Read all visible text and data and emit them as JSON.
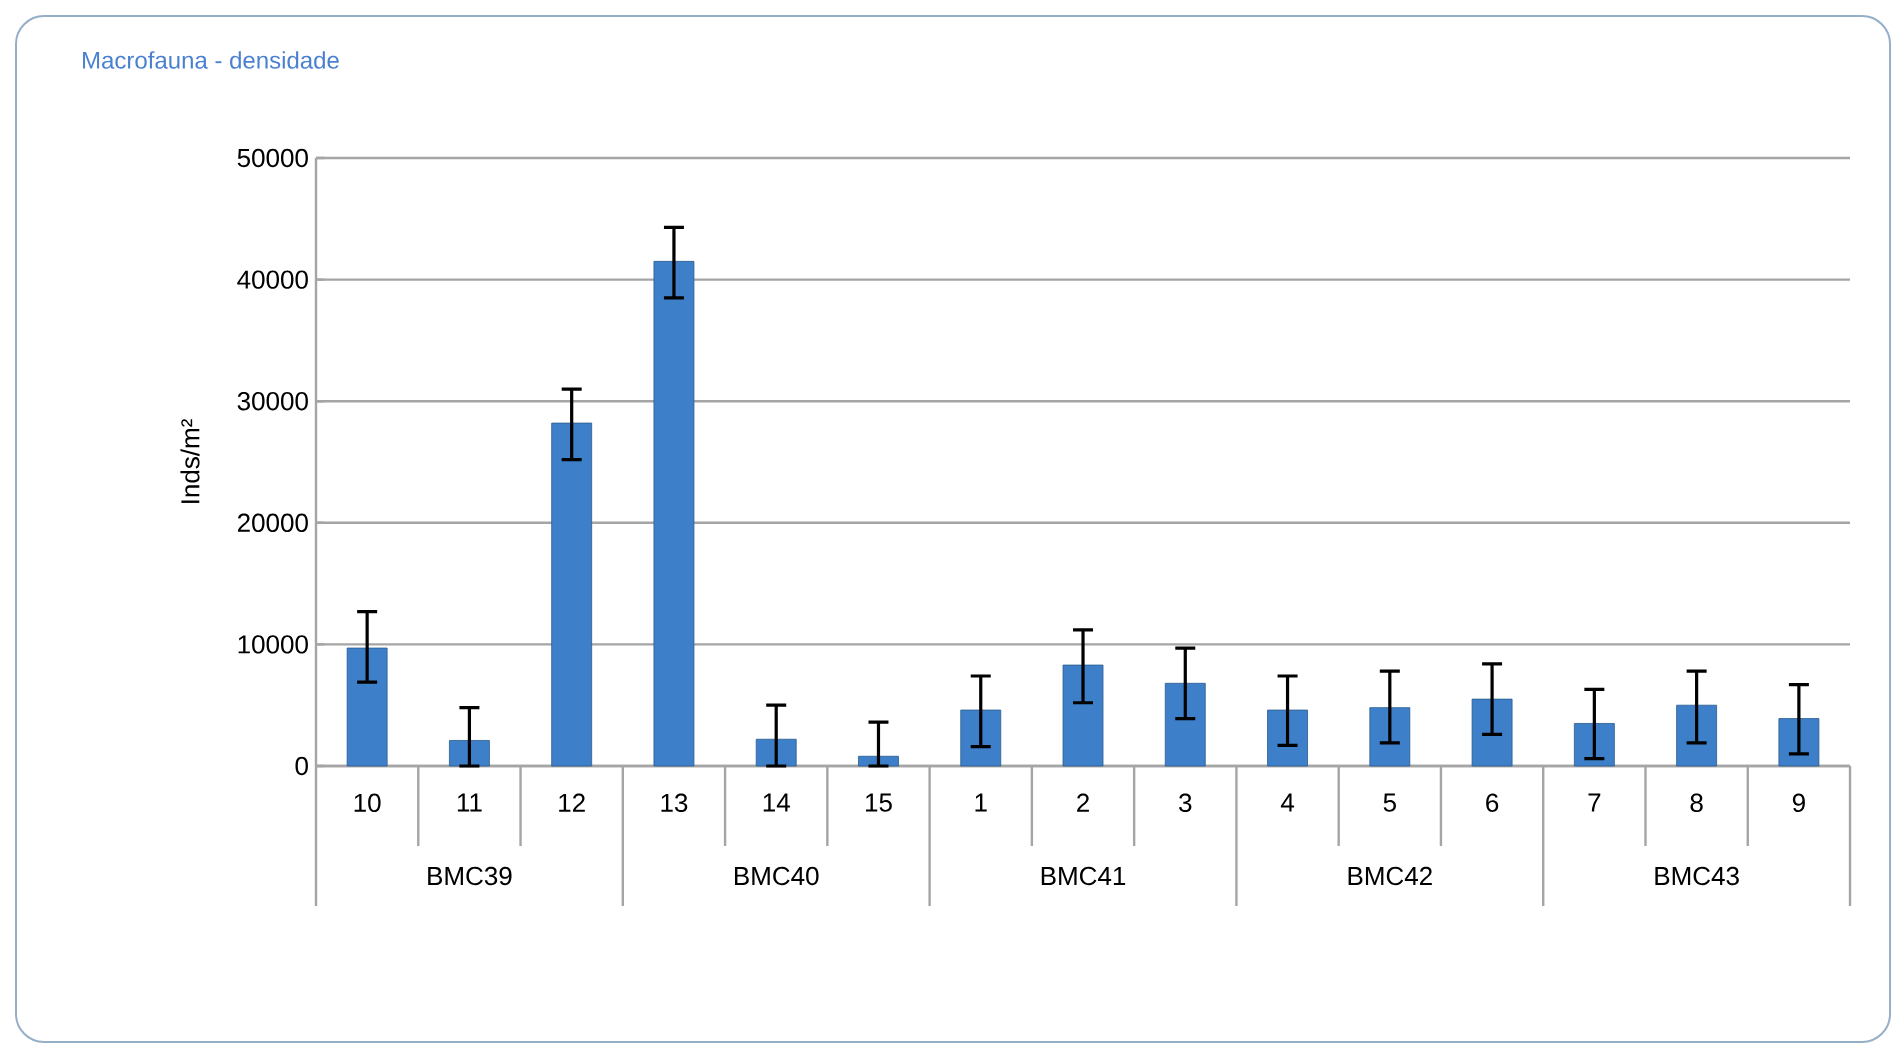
{
  "chart_data": {
    "type": "bar",
    "title": "Macrofauna - densidade",
    "ylabel": "Inds/m²",
    "categories": [
      "10",
      "11",
      "12",
      "13",
      "14",
      "15",
      "1",
      "2",
      "3",
      "4",
      "5",
      "6",
      "7",
      "8",
      "9"
    ],
    "values": [
      9700,
      2100,
      28200,
      41500,
      2200,
      800,
      4600,
      8300,
      6800,
      4600,
      4800,
      5500,
      3500,
      5000,
      3900
    ],
    "errors": [
      [
        6900,
        12700
      ],
      [
        0,
        4800
      ],
      [
        25200,
        31000
      ],
      [
        38500,
        44300
      ],
      [
        0,
        5000
      ],
      [
        0,
        3600
      ],
      [
        1600,
        7400
      ],
      [
        5200,
        11200
      ],
      [
        3900,
        9700
      ],
      [
        1700,
        7400
      ],
      [
        1900,
        7800
      ],
      [
        2600,
        8400
      ],
      [
        600,
        6300
      ],
      [
        1900,
        7800
      ],
      [
        1000,
        6700
      ]
    ],
    "annotations": [
      "BMC39",
      "BMC40",
      "BMC41",
      "BMC42",
      "BMC43"
    ],
    "color": "#3d80c9",
    "ylim": [
      0,
      50000
    ],
    "yticks": [
      0,
      10000,
      20000,
      30000,
      40000,
      50000
    ],
    "grid": "y"
  }
}
